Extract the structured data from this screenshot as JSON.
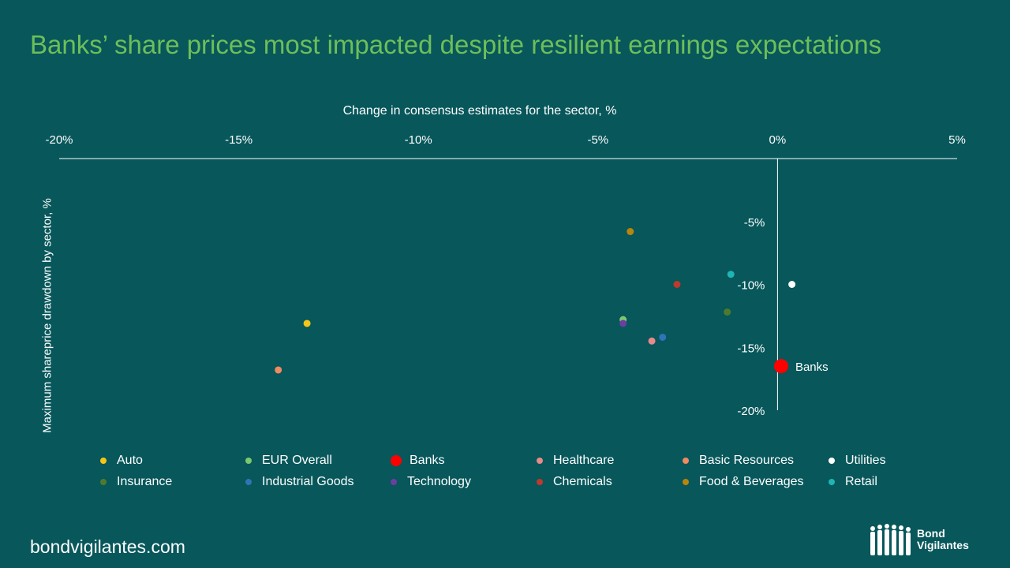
{
  "title": "Banks’ share prices most impacted despite resilient earnings expectations",
  "footer": {
    "site": "bondvigilantes.com",
    "logo_line1": "Bond",
    "logo_line2": "Vigilantes"
  },
  "chart_data": {
    "type": "scatter",
    "xlabel": "Change in consensus estimates for the sector, %",
    "ylabel": "Maximum shareprice drawdown by sector, %",
    "xlim": [
      -20,
      5
    ],
    "ylim": [
      -20,
      0
    ],
    "x_ticks": [
      -20,
      -15,
      -10,
      -5,
      0,
      5
    ],
    "x_tick_labels": [
      "-20%",
      "-15%",
      "-10%",
      "-5%",
      "0%",
      "5%"
    ],
    "y_ticks": [
      -5,
      -10,
      -15,
      -20
    ],
    "y_tick_labels": [
      "-5%",
      "-10%",
      "-15%",
      "-20%"
    ],
    "grid": false,
    "legend_position": "bottom",
    "series": [
      {
        "name": "Auto",
        "x": -13.1,
        "y": -13.1,
        "color": "#F5C518"
      },
      {
        "name": "EUR Overall",
        "x": -4.3,
        "y": -12.8,
        "color": "#7CC86E"
      },
      {
        "name": "Banks",
        "x": 0.1,
        "y": -16.5,
        "color": "#FF0000",
        "label": "Banks",
        "highlight": true
      },
      {
        "name": "Healthcare",
        "x": -3.5,
        "y": -14.5,
        "color": "#E88A8A"
      },
      {
        "name": "Basic Resources",
        "x": -13.9,
        "y": -16.8,
        "color": "#F08A60"
      },
      {
        "name": "Utilities",
        "x": 0.4,
        "y": -10.0,
        "color": "#FFFFFF"
      },
      {
        "name": "Insurance",
        "x": -1.4,
        "y": -12.2,
        "color": "#4F7A2E"
      },
      {
        "name": "Industrial Goods",
        "x": -3.2,
        "y": -14.2,
        "color": "#2E75B6"
      },
      {
        "name": "Technology",
        "x": -4.3,
        "y": -13.1,
        "color": "#6B3FA0"
      },
      {
        "name": "Chemicals",
        "x": -2.8,
        "y": -10.0,
        "color": "#C0392B"
      },
      {
        "name": "Food & Beverages",
        "x": -4.1,
        "y": -5.8,
        "color": "#B8860B"
      },
      {
        "name": "Retail",
        "x": -1.3,
        "y": -9.2,
        "color": "#1FB5B5"
      }
    ]
  }
}
